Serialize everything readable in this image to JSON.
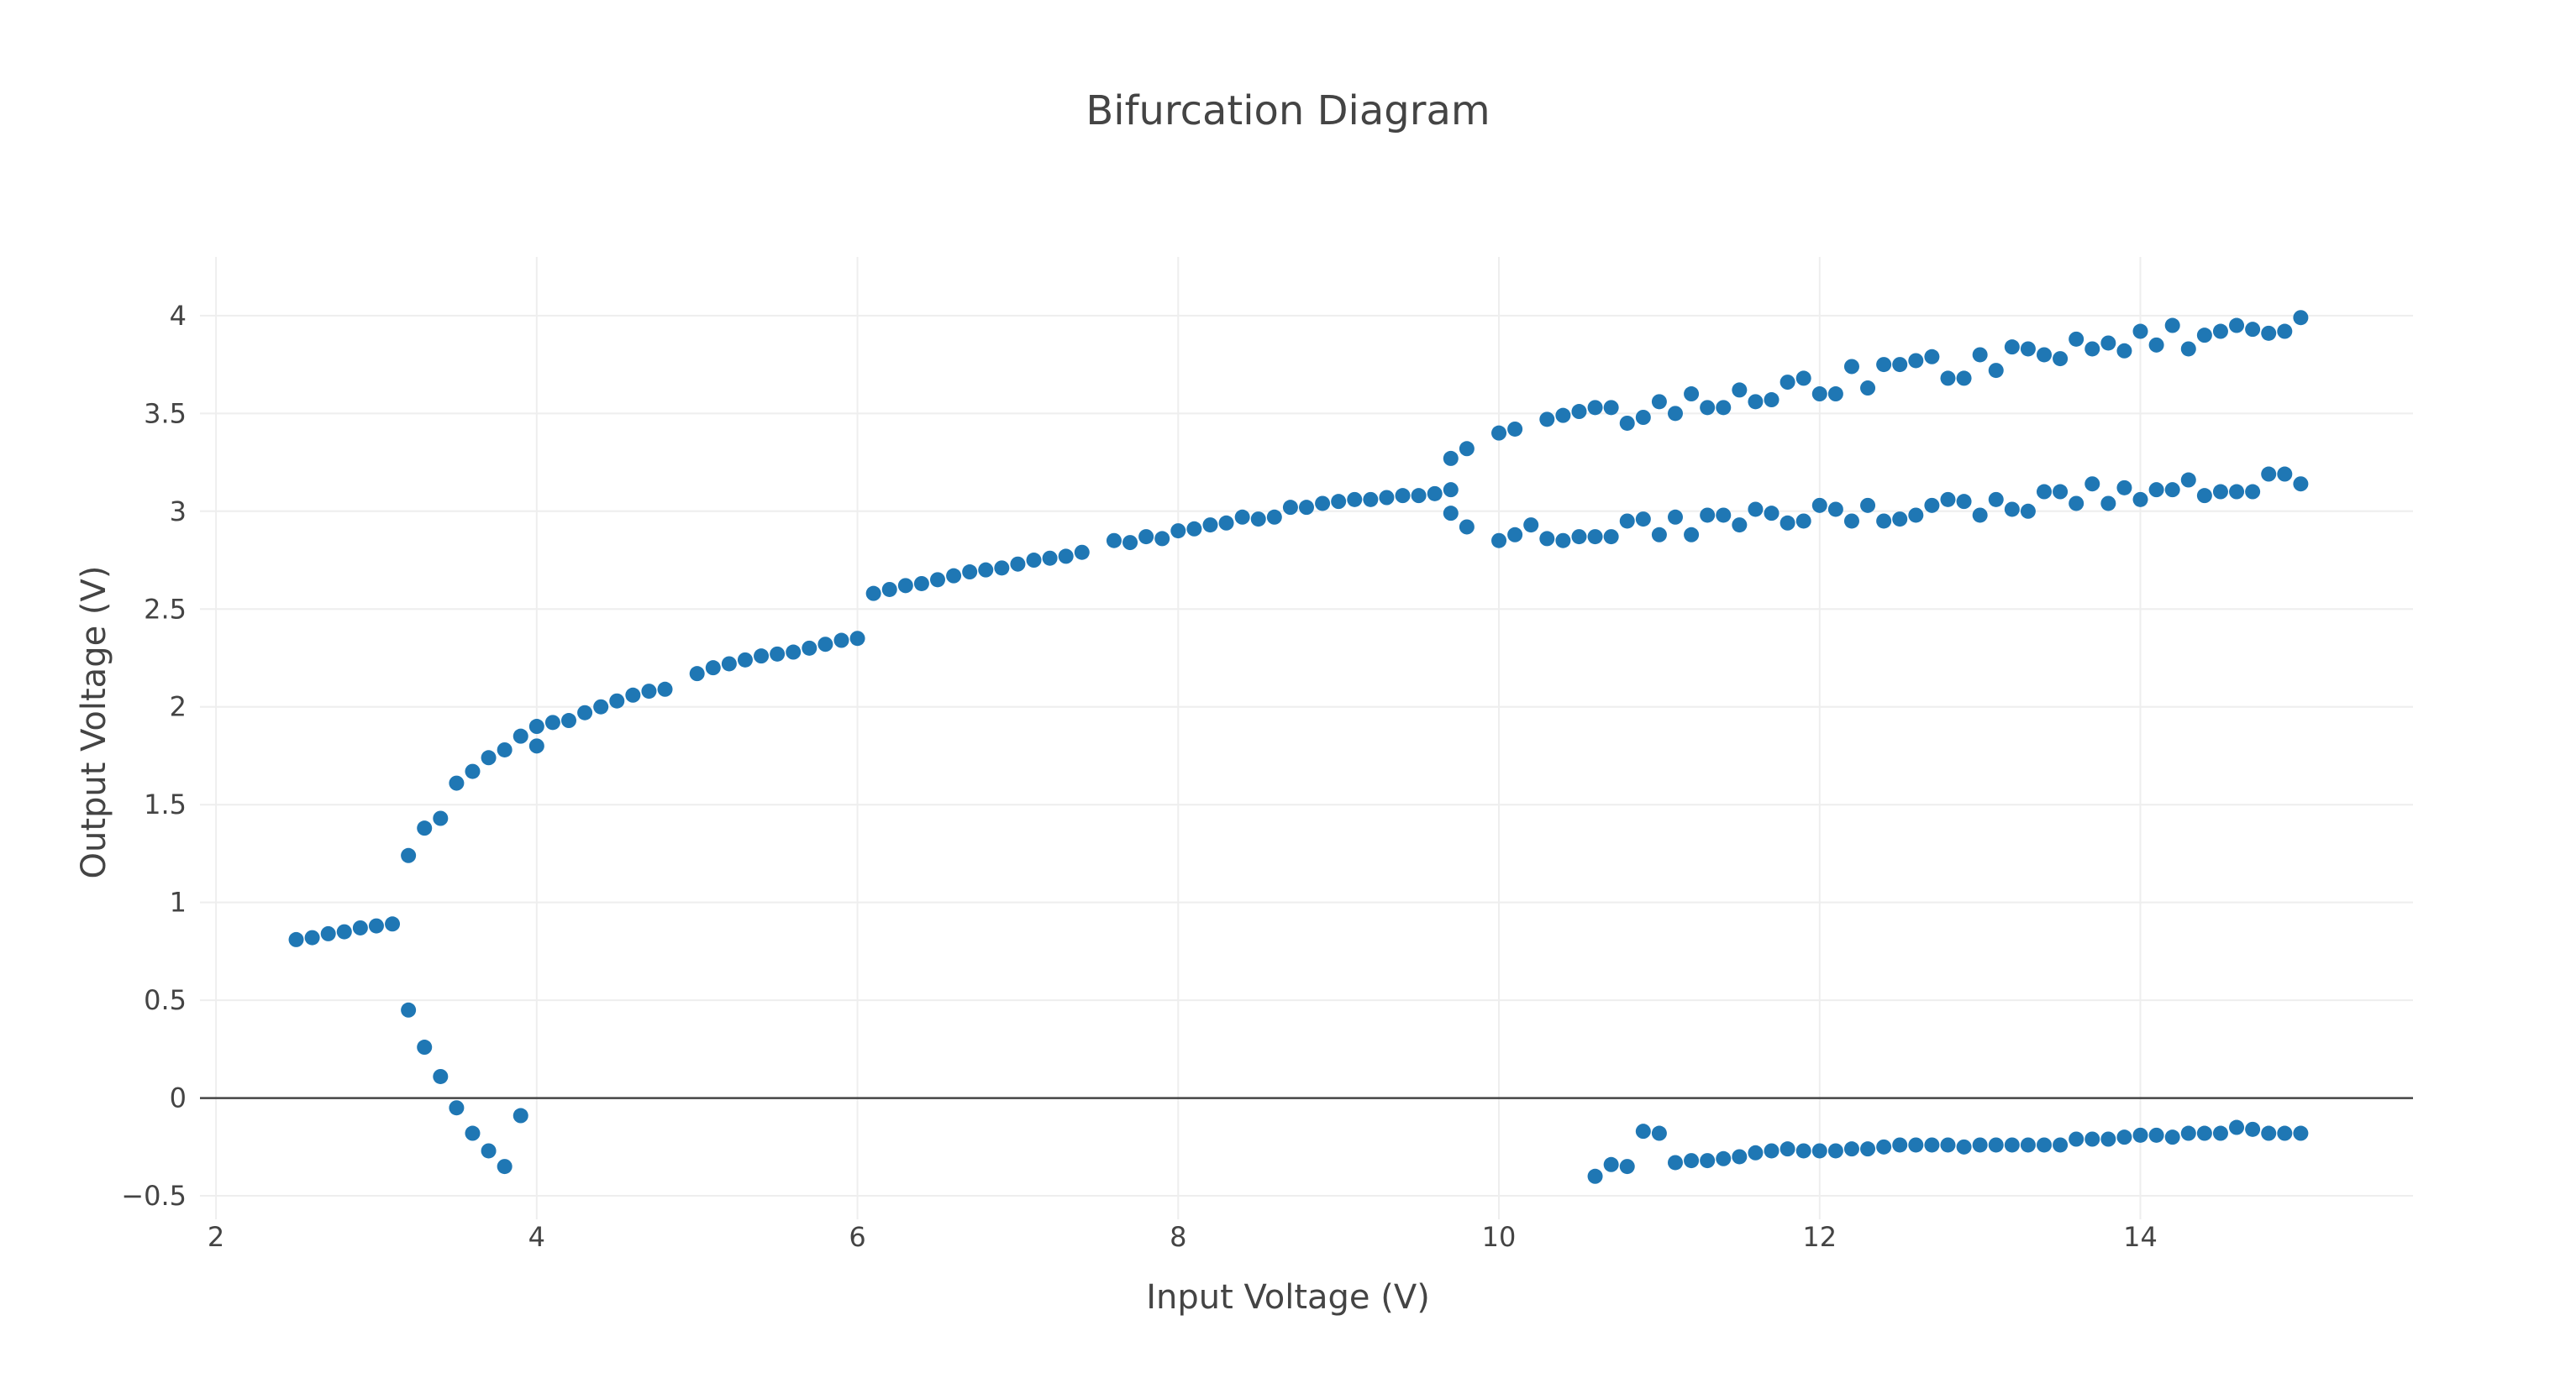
{
  "chart_data": {
    "type": "scatter",
    "title": "Bifurcation Diagram",
    "xlabel": "Input Voltage (V)",
    "ylabel": "Output Voltage (V)",
    "xlim": [
      1.9,
      15.7
    ],
    "ylim": [
      -0.62,
      4.3
    ],
    "xticks": [
      "2",
      "4",
      "6",
      "8",
      "10",
      "12",
      "14"
    ],
    "yticks": [
      "−0.5",
      "0",
      "0.5",
      "1",
      "1.5",
      "2",
      "2.5",
      "3",
      "3.5",
      "4"
    ],
    "xtick_values": [
      2,
      4,
      6,
      8,
      10,
      12,
      14
    ],
    "ytick_values": [
      -0.5,
      0,
      0.5,
      1,
      1.5,
      2,
      2.5,
      3,
      3.5,
      4
    ],
    "grid": true,
    "marker_color": "#1f77b4",
    "series": [
      {
        "points": [
          [
            2.5,
            0.81
          ],
          [
            2.6,
            0.82
          ],
          [
            2.7,
            0.84
          ],
          [
            2.8,
            0.85
          ],
          [
            2.9,
            0.87
          ],
          [
            3.0,
            0.88
          ],
          [
            3.1,
            0.89
          ],
          [
            3.2,
            1.24
          ],
          [
            3.3,
            1.38
          ],
          [
            3.4,
            1.43
          ],
          [
            3.5,
            1.61
          ],
          [
            3.6,
            1.67
          ],
          [
            3.7,
            1.74
          ],
          [
            3.8,
            1.78
          ],
          [
            3.9,
            1.85
          ],
          [
            4.0,
            1.8
          ],
          [
            4.0,
            1.9
          ],
          [
            4.1,
            1.92
          ],
          [
            4.2,
            1.93
          ],
          [
            4.3,
            1.97
          ],
          [
            4.4,
            2.0
          ],
          [
            4.5,
            2.03
          ],
          [
            4.6,
            2.06
          ],
          [
            4.7,
            2.08
          ],
          [
            4.8,
            2.09
          ],
          [
            5.0,
            2.17
          ],
          [
            5.1,
            2.2
          ],
          [
            5.2,
            2.22
          ],
          [
            5.3,
            2.24
          ],
          [
            5.4,
            2.26
          ],
          [
            5.5,
            2.27
          ],
          [
            5.6,
            2.28
          ],
          [
            5.7,
            2.3
          ],
          [
            5.8,
            2.32
          ],
          [
            5.9,
            2.34
          ],
          [
            6.0,
            2.35
          ],
          [
            6.1,
            2.58
          ],
          [
            6.2,
            2.6
          ],
          [
            6.3,
            2.62
          ],
          [
            6.4,
            2.63
          ],
          [
            6.5,
            2.65
          ],
          [
            6.6,
            2.67
          ],
          [
            6.7,
            2.69
          ],
          [
            6.8,
            2.7
          ],
          [
            6.9,
            2.71
          ],
          [
            7.0,
            2.73
          ],
          [
            7.1,
            2.75
          ],
          [
            7.2,
            2.76
          ],
          [
            7.3,
            2.77
          ],
          [
            7.4,
            2.79
          ],
          [
            7.6,
            2.85
          ],
          [
            7.7,
            2.84
          ],
          [
            7.8,
            2.87
          ],
          [
            7.9,
            2.86
          ],
          [
            8.0,
            2.9
          ],
          [
            8.1,
            2.91
          ],
          [
            8.2,
            2.93
          ],
          [
            8.3,
            2.94
          ],
          [
            8.4,
            2.97
          ],
          [
            8.5,
            2.96
          ],
          [
            8.6,
            2.97
          ],
          [
            8.7,
            3.02
          ],
          [
            8.8,
            3.02
          ],
          [
            8.9,
            3.04
          ],
          [
            9.0,
            3.05
          ],
          [
            9.1,
            3.06
          ],
          [
            9.2,
            3.06
          ],
          [
            9.3,
            3.07
          ],
          [
            9.4,
            3.08
          ],
          [
            9.5,
            3.08
          ],
          [
            9.6,
            3.09
          ],
          [
            9.7,
            3.11
          ],
          [
            9.7,
            3.27
          ],
          [
            9.8,
            3.32
          ],
          [
            10.0,
            3.4
          ],
          [
            10.1,
            3.42
          ],
          [
            10.3,
            3.47
          ],
          [
            10.4,
            3.49
          ],
          [
            10.5,
            3.51
          ],
          [
            10.6,
            3.53
          ],
          [
            10.7,
            3.53
          ],
          [
            10.8,
            3.45
          ],
          [
            10.9,
            3.48
          ],
          [
            11.0,
            3.56
          ],
          [
            11.1,
            3.5
          ],
          [
            11.2,
            3.6
          ],
          [
            11.3,
            3.53
          ],
          [
            11.4,
            3.53
          ],
          [
            11.5,
            3.62
          ],
          [
            11.6,
            3.56
          ],
          [
            11.7,
            3.57
          ],
          [
            11.8,
            3.66
          ],
          [
            11.9,
            3.68
          ],
          [
            12.0,
            3.6
          ],
          [
            12.1,
            3.6
          ],
          [
            12.2,
            3.74
          ],
          [
            12.3,
            3.63
          ],
          [
            12.4,
            3.75
          ],
          [
            12.5,
            3.75
          ],
          [
            12.6,
            3.77
          ],
          [
            12.7,
            3.79
          ],
          [
            12.8,
            3.68
          ],
          [
            12.9,
            3.68
          ],
          [
            13.0,
            3.8
          ],
          [
            13.1,
            3.72
          ],
          [
            13.2,
            3.84
          ],
          [
            13.3,
            3.83
          ],
          [
            13.4,
            3.8
          ],
          [
            13.5,
            3.78
          ],
          [
            13.6,
            3.88
          ],
          [
            13.7,
            3.83
          ],
          [
            13.8,
            3.86
          ],
          [
            13.9,
            3.82
          ],
          [
            14.0,
            3.92
          ],
          [
            14.1,
            3.85
          ],
          [
            14.2,
            3.95
          ],
          [
            14.3,
            3.83
          ],
          [
            14.4,
            3.9
          ],
          [
            14.5,
            3.92
          ],
          [
            14.6,
            3.95
          ],
          [
            14.7,
            3.93
          ],
          [
            14.8,
            3.91
          ],
          [
            14.9,
            3.92
          ],
          [
            15.0,
            3.99
          ],
          [
            9.7,
            2.99
          ],
          [
            9.8,
            2.92
          ],
          [
            10.0,
            2.85
          ],
          [
            10.1,
            2.88
          ],
          [
            10.2,
            2.93
          ],
          [
            10.3,
            2.86
          ],
          [
            10.4,
            2.85
          ],
          [
            10.5,
            2.87
          ],
          [
            10.6,
            2.87
          ],
          [
            10.7,
            2.87
          ],
          [
            10.8,
            2.95
          ],
          [
            10.9,
            2.96
          ],
          [
            11.0,
            2.88
          ],
          [
            11.1,
            2.97
          ],
          [
            11.2,
            2.88
          ],
          [
            11.3,
            2.98
          ],
          [
            11.4,
            2.98
          ],
          [
            11.5,
            2.93
          ],
          [
            11.6,
            3.01
          ],
          [
            11.7,
            2.99
          ],
          [
            11.8,
            2.94
          ],
          [
            11.9,
            2.95
          ],
          [
            12.0,
            3.03
          ],
          [
            12.1,
            3.01
          ],
          [
            12.2,
            2.95
          ],
          [
            12.3,
            3.03
          ],
          [
            12.4,
            2.95
          ],
          [
            12.5,
            2.96
          ],
          [
            12.6,
            2.98
          ],
          [
            12.7,
            3.03
          ],
          [
            12.8,
            3.06
          ],
          [
            12.9,
            3.05
          ],
          [
            13.0,
            2.98
          ],
          [
            13.1,
            3.06
          ],
          [
            13.2,
            3.01
          ],
          [
            13.3,
            3.0
          ],
          [
            13.4,
            3.1
          ],
          [
            13.5,
            3.1
          ],
          [
            13.6,
            3.04
          ],
          [
            13.7,
            3.14
          ],
          [
            13.8,
            3.04
          ],
          [
            13.9,
            3.12
          ],
          [
            14.0,
            3.06
          ],
          [
            14.1,
            3.11
          ],
          [
            14.2,
            3.11
          ],
          [
            14.3,
            3.16
          ],
          [
            14.4,
            3.08
          ],
          [
            14.5,
            3.1
          ],
          [
            14.6,
            3.1
          ],
          [
            14.7,
            3.1
          ],
          [
            14.8,
            3.19
          ],
          [
            14.9,
            3.19
          ],
          [
            15.0,
            3.14
          ],
          [
            3.2,
            0.45
          ],
          [
            3.3,
            0.26
          ],
          [
            3.4,
            0.11
          ],
          [
            3.5,
            -0.05
          ],
          [
            3.6,
            -0.18
          ],
          [
            3.7,
            -0.27
          ],
          [
            3.8,
            -0.35
          ],
          [
            3.9,
            -0.09
          ],
          [
            10.6,
            -0.4
          ],
          [
            10.7,
            -0.34
          ],
          [
            10.8,
            -0.35
          ],
          [
            10.9,
            -0.17
          ],
          [
            11.0,
            -0.18
          ],
          [
            11.1,
            -0.33
          ],
          [
            11.2,
            -0.32
          ],
          [
            11.3,
            -0.32
          ],
          [
            11.4,
            -0.31
          ],
          [
            11.5,
            -0.3
          ],
          [
            11.6,
            -0.28
          ],
          [
            11.7,
            -0.27
          ],
          [
            11.8,
            -0.26
          ],
          [
            11.9,
            -0.27
          ],
          [
            12.0,
            -0.27
          ],
          [
            12.1,
            -0.27
          ],
          [
            12.2,
            -0.26
          ],
          [
            12.3,
            -0.26
          ],
          [
            12.4,
            -0.25
          ],
          [
            12.5,
            -0.24
          ],
          [
            12.6,
            -0.24
          ],
          [
            12.7,
            -0.24
          ],
          [
            12.8,
            -0.24
          ],
          [
            12.9,
            -0.25
          ],
          [
            13.0,
            -0.24
          ],
          [
            13.1,
            -0.24
          ],
          [
            13.2,
            -0.24
          ],
          [
            13.3,
            -0.24
          ],
          [
            13.4,
            -0.24
          ],
          [
            13.5,
            -0.24
          ],
          [
            13.6,
            -0.21
          ],
          [
            13.7,
            -0.21
          ],
          [
            13.8,
            -0.21
          ],
          [
            13.9,
            -0.2
          ],
          [
            14.0,
            -0.19
          ],
          [
            14.1,
            -0.19
          ],
          [
            14.2,
            -0.2
          ],
          [
            14.3,
            -0.18
          ],
          [
            14.4,
            -0.18
          ],
          [
            14.5,
            -0.18
          ],
          [
            14.6,
            -0.15
          ],
          [
            14.7,
            -0.16
          ],
          [
            14.8,
            -0.18
          ],
          [
            14.9,
            -0.18
          ],
          [
            15.0,
            -0.18
          ]
        ]
      }
    ]
  }
}
